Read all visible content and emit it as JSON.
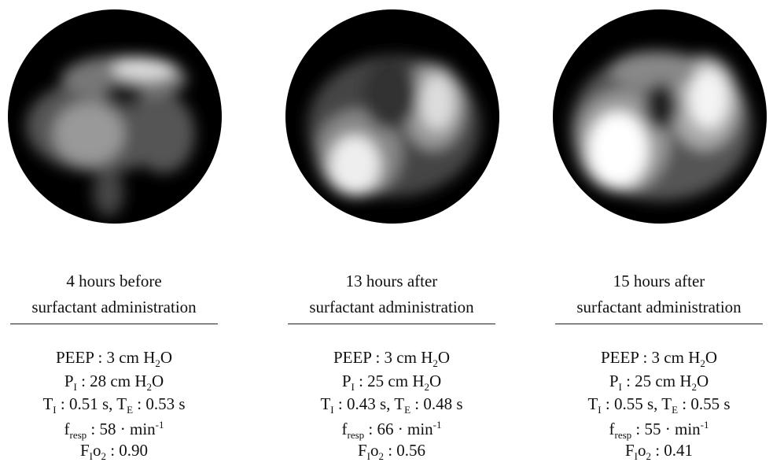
{
  "panels": [
    {
      "title_lines": [
        "4 hours before",
        "surfactant administration"
      ],
      "params": [
        [
          {
            "text": "PEEP : 3 cm H"
          },
          {
            "text": "2",
            "style": "sub"
          },
          {
            "text": "O"
          }
        ],
        [
          {
            "text": "P"
          },
          {
            "text": "I",
            "style": "sub"
          },
          {
            "text": " : 28 cm H"
          },
          {
            "text": "2",
            "style": "sub"
          },
          {
            "text": "O"
          }
        ],
        [
          {
            "text": "T"
          },
          {
            "text": "I",
            "style": "sub"
          },
          {
            "text": " : 0.51 s, T"
          },
          {
            "text": "E",
            "style": "sub"
          },
          {
            "text": " : 0.53 s"
          }
        ],
        [
          {
            "text": "f"
          },
          {
            "text": "resp",
            "style": "sub"
          },
          {
            "text": " : 58 · min"
          },
          {
            "text": "-1",
            "style": "sup"
          }
        ],
        [
          {
            "text": "F"
          },
          {
            "text": "I",
            "style": "sub"
          },
          {
            "text": "o"
          },
          {
            "text": "2",
            "style": "sub"
          },
          {
            "text": " : 0.90"
          }
        ]
      ]
    },
    {
      "title_lines": [
        "13 hours after",
        "surfactant administration"
      ],
      "params": [
        [
          {
            "text": "PEEP : 3 cm H"
          },
          {
            "text": "2",
            "style": "sub"
          },
          {
            "text": "O"
          }
        ],
        [
          {
            "text": "P"
          },
          {
            "text": "I",
            "style": "sub"
          },
          {
            "text": " : 25 cm H"
          },
          {
            "text": "2",
            "style": "sub"
          },
          {
            "text": "O"
          }
        ],
        [
          {
            "text": "T"
          },
          {
            "text": "I",
            "style": "sub"
          },
          {
            "text": " : 0.43 s, T"
          },
          {
            "text": "E",
            "style": "sub"
          },
          {
            "text": " : 0.48 s"
          }
        ],
        [
          {
            "text": "f"
          },
          {
            "text": "resp",
            "style": "sub"
          },
          {
            "text": " : 66 · min"
          },
          {
            "text": "-1",
            "style": "sup"
          }
        ],
        [
          {
            "text": "F"
          },
          {
            "text": "I",
            "style": "sub"
          },
          {
            "text": "o"
          },
          {
            "text": "2",
            "style": "sub"
          },
          {
            "text": " : 0.56"
          }
        ]
      ]
    },
    {
      "title_lines": [
        "15 hours after",
        "surfactant administration"
      ],
      "params": [
        [
          {
            "text": "PEEP : 3 cm H"
          },
          {
            "text": "2",
            "style": "sub"
          },
          {
            "text": "O"
          }
        ],
        [
          {
            "text": "P"
          },
          {
            "text": "I",
            "style": "sub"
          },
          {
            "text": " : 25 cm H"
          },
          {
            "text": "2",
            "style": "sub"
          },
          {
            "text": "O"
          }
        ],
        [
          {
            "text": "T"
          },
          {
            "text": "I",
            "style": "sub"
          },
          {
            "text": " : 0.55 s, T"
          },
          {
            "text": "E",
            "style": "sub"
          },
          {
            "text": " : 0.55 s"
          }
        ],
        [
          {
            "text": "f"
          },
          {
            "text": "resp",
            "style": "sub"
          },
          {
            "text": " : 55 · min"
          },
          {
            "text": "-1",
            "style": "sup"
          }
        ],
        [
          {
            "text": "F"
          },
          {
            "text": "I",
            "style": "sub"
          },
          {
            "text": "o"
          },
          {
            "text": "2",
            "style": "sub"
          },
          {
            "text": " : 0.41"
          }
        ]
      ]
    }
  ]
}
